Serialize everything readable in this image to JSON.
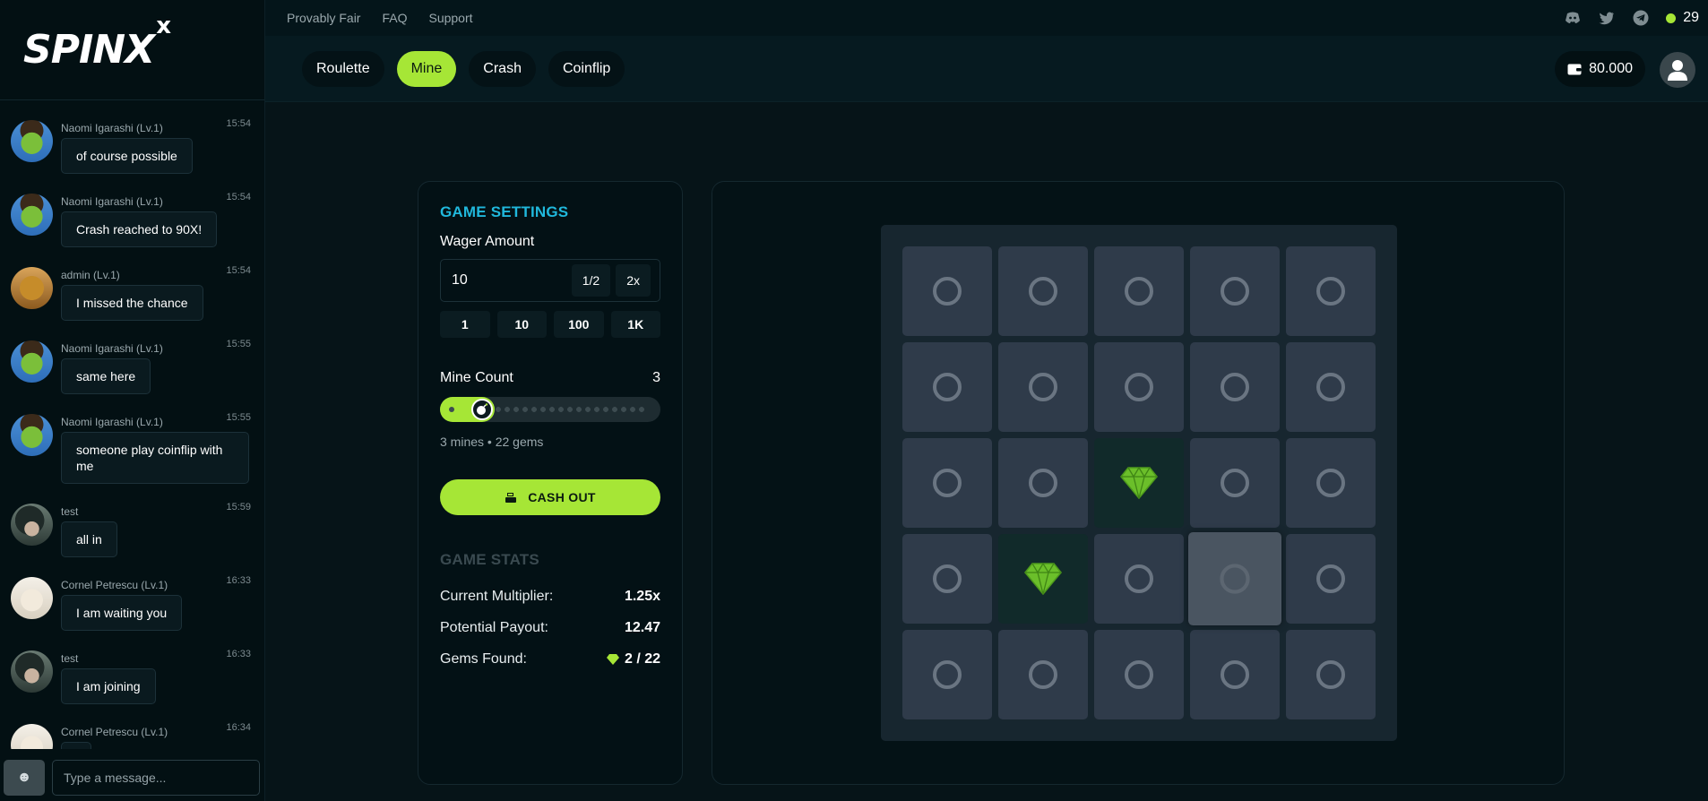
{
  "brand": {
    "logo_text": "SPINX",
    "logo_mark": "x"
  },
  "topbar": {
    "links": [
      "Provably Fair",
      "FAQ",
      "Support"
    ],
    "icons": [
      "discord-icon",
      "twitter-icon",
      "telegram-icon"
    ],
    "online_count": "29",
    "online_color": "#a6e636"
  },
  "nav": {
    "tabs": [
      {
        "label": "Roulette",
        "active": false
      },
      {
        "label": "Mine",
        "active": true
      },
      {
        "label": "Crash",
        "active": false
      },
      {
        "label": "Coinflip",
        "active": false
      }
    ],
    "balance": "80.000"
  },
  "chat": {
    "messages": [
      {
        "name": "Naomi Igarashi (Lv.1)",
        "time": "15:54",
        "text": "of course possible",
        "avatar": "pirate"
      },
      {
        "name": "Naomi Igarashi (Lv.1)",
        "time": "15:54",
        "text": "Crash reached to 90X!",
        "avatar": "pirate"
      },
      {
        "name": "admin (Lv.1)",
        "time": "15:54",
        "text": "I missed the chance",
        "avatar": "gold"
      },
      {
        "name": "Naomi Igarashi (Lv.1)",
        "time": "15:55",
        "text": "same here",
        "avatar": "pirate"
      },
      {
        "name": "Naomi Igarashi (Lv.1)",
        "time": "15:55",
        "text": "someone play coinflip with me",
        "avatar": "pirate"
      },
      {
        "name": "test",
        "time": "15:59",
        "text": "all in",
        "avatar": "dark"
      },
      {
        "name": "Cornel Petrescu (Lv.1)",
        "time": "16:33",
        "text": "I am waiting you",
        "avatar": "light"
      },
      {
        "name": "test",
        "time": "16:33",
        "text": "I am joining",
        "avatar": "dark"
      },
      {
        "name": "Cornel Petrescu (Lv.1)",
        "time": "16:34",
        "text": "",
        "avatar": "light"
      }
    ],
    "emoji_label": "☻",
    "input_placeholder": "Type a message..."
  },
  "settings": {
    "title": "GAME SETTINGS",
    "wager_label": "Wager Amount",
    "wager_value": "10",
    "half_label": "1/2",
    "double_label": "2x",
    "quick_amounts": [
      "1",
      "10",
      "100",
      "1K"
    ],
    "mine_count_label": "Mine Count",
    "mine_count": "3",
    "mine_slider_fraction": 0.12,
    "mine_info": "3 mines • 22 gems",
    "cashout_label": "CASH OUT",
    "accent": "#a6e636"
  },
  "stats": {
    "title": "GAME STATS",
    "multiplier_label": "Current Multiplier:",
    "multiplier": "1.25x",
    "payout_label": "Potential Payout:",
    "payout": "12.47",
    "gems_label": "Gems Found:",
    "gems": "2 / 22"
  },
  "board": {
    "rows": 5,
    "cols": 5,
    "tiles": [
      "hidden",
      "hidden",
      "hidden",
      "hidden",
      "hidden",
      "hidden",
      "hidden",
      "hidden",
      "hidden",
      "hidden",
      "hidden",
      "hidden",
      "gem",
      "hidden",
      "hidden",
      "hidden",
      "gem",
      "hidden",
      "hover",
      "hidden",
      "hidden",
      "hidden",
      "hidden",
      "hidden",
      "hidden"
    ]
  }
}
